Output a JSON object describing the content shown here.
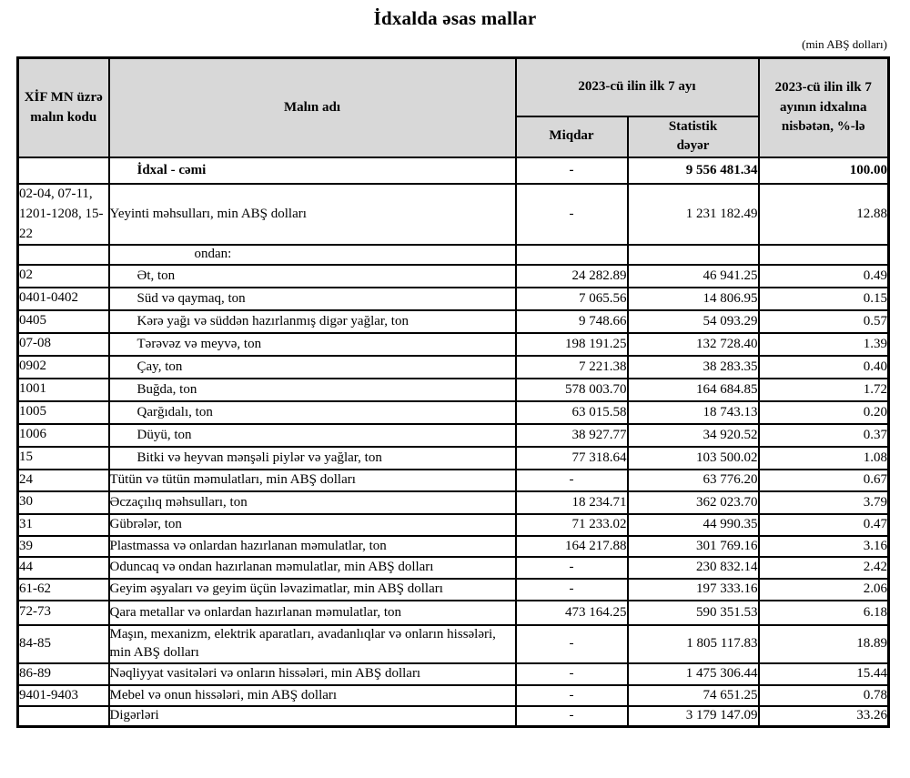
{
  "page": {
    "title": "İdxalda əsas mallar",
    "unit_note": "(min ABŞ dolları)"
  },
  "table": {
    "headers": {
      "code": "XİF MN üzrə malın kodu",
      "name": "Malın adı",
      "period_group": "2023-cü ilin ilk 7 ayı",
      "qty": "Miqdar",
      "value": "Statistik dəyər",
      "pct": "2023-cü ilin ilk 7 ayının idxalına nisbətən, %-lə"
    },
    "rows": [
      {
        "code": "",
        "name": "İdxal - cəmi",
        "qty": "-",
        "value": "9 556 481.34",
        "pct": "100.00",
        "bold": true,
        "indent": "sub",
        "h": 29
      },
      {
        "code": "02-04, 07-11, 1201-1208, 15-22",
        "name": "Yeyinti məhsulları, min ABŞ dolları",
        "qty": "-",
        "value": "1 231 182.49",
        "pct": "12.88",
        "bold": false,
        "indent": "none",
        "h": 66
      },
      {
        "code": "",
        "name": "ondan:",
        "qty": "",
        "value": "",
        "pct": "",
        "bold": false,
        "indent": "ondan",
        "h": 21
      },
      {
        "code": "02",
        "name": "Ət, ton",
        "qty": "24 282.89",
        "value": "46 941.25",
        "pct": "0.49",
        "bold": false,
        "indent": "sub",
        "h": 25
      },
      {
        "code": "0401-0402",
        "name": "Süd və qaymaq, ton",
        "qty": "7 065.56",
        "value": "14 806.95",
        "pct": "0.15",
        "bold": false,
        "indent": "sub",
        "h": 25
      },
      {
        "code": "0405",
        "name": "Kərə yağı və süddən hazırlanmış digər yağlar, ton",
        "qty": "9 748.66",
        "value": "54 093.29",
        "pct": "0.57",
        "bold": false,
        "indent": "sub",
        "h": 25
      },
      {
        "code": "07-08",
        "name": "Tərəvəz və meyvə, ton",
        "qty": "198 191.25",
        "value": "132 728.40",
        "pct": "1.39",
        "bold": false,
        "indent": "sub",
        "h": 25
      },
      {
        "code": "0902",
        "name": "Çay, ton",
        "qty": "7 221.38",
        "value": "38 283.35",
        "pct": "0.40",
        "bold": false,
        "indent": "sub",
        "h": 25
      },
      {
        "code": "1001",
        "name": "Buğda, ton",
        "qty": "578 003.70",
        "value": "164 684.85",
        "pct": "1.72",
        "bold": false,
        "indent": "sub",
        "h": 25
      },
      {
        "code": "1005",
        "name": "Qarğıdalı, ton",
        "qty": "63 015.58",
        "value": "18 743.13",
        "pct": "0.20",
        "bold": false,
        "indent": "sub",
        "h": 25
      },
      {
        "code": "1006",
        "name": "Düyü, ton",
        "qty": "38 927.77",
        "value": "34 920.52",
        "pct": "0.37",
        "bold": false,
        "indent": "sub",
        "h": 25
      },
      {
        "code": "15",
        "name": "Bitki və heyvan mənşəli piylər və yağlar, ton",
        "qty": "77 318.64",
        "value": "103 500.02",
        "pct": "1.08",
        "bold": false,
        "indent": "sub",
        "h": 25
      },
      {
        "code": "24",
        "name": "Tütün və tütün məmulatları, min ABŞ dolları",
        "qty": "-",
        "value": "63 776.20",
        "pct": "0.67",
        "bold": false,
        "indent": "none",
        "h": 24
      },
      {
        "code": "30",
        "name": "Əczaçılıq məhsulları, ton",
        "qty": "18 234.71",
        "value": "362 023.70",
        "pct": "3.79",
        "bold": false,
        "indent": "none",
        "h": 25
      },
      {
        "code": "31",
        "name": "Gübrələr, ton",
        "qty": "71 233.02",
        "value": "44 990.35",
        "pct": "0.47",
        "bold": false,
        "indent": "none",
        "h": 23
      },
      {
        "code": "39",
        "name": "Plastmassa və onlardan hazırlanan məmulatlar, ton",
        "qty": "164 217.88",
        "value": "301 769.16",
        "pct": "3.16",
        "bold": false,
        "indent": "none",
        "h": 21
      },
      {
        "code": "44",
        "name": "Oduncaq və ondan hazırlanan məmulatlar, min ABŞ dolları",
        "qty": "-",
        "value": "230 832.14",
        "pct": "2.42",
        "bold": false,
        "indent": "none",
        "h": 21
      },
      {
        "code": "61-62",
        "name": "Geyim əşyaları və geyim üçün ləvazimatlar, min ABŞ dolları",
        "qty": "-",
        "value": "197 333.16",
        "pct": "2.06",
        "bold": false,
        "indent": "none",
        "h": 21
      },
      {
        "code": "72-73",
        "name": "Qara metallar və onlardan hazırlanan məmulatlar, ton",
        "qty": "473 164.25",
        "value": "590 351.53",
        "pct": "6.18",
        "bold": false,
        "indent": "none",
        "h": 27
      },
      {
        "code": "84-85",
        "name": "Maşın, mexanizm, elektrik aparatları, avadanlıqlar və onların hissələri, min ABŞ dolları",
        "qty": "-",
        "value": "1 805 117.83",
        "pct": "18.89",
        "bold": false,
        "indent": "none",
        "h": 42
      },
      {
        "code": "86-89",
        "name": "Nəqliyyat vasitələri və onların hissələri, min ABŞ dolları",
        "qty": "-",
        "value": "1 475 306.44",
        "pct": "15.44",
        "bold": false,
        "indent": "none",
        "h": 22
      },
      {
        "code": "9401-9403",
        "name": "Mebel və onun hissələri, min ABŞ dolları",
        "qty": "-",
        "value": "74 651.25",
        "pct": "0.78",
        "bold": false,
        "indent": "none",
        "h": 23
      },
      {
        "code": "",
        "name": "Digərləri",
        "qty": "-",
        "value": "3 179 147.09",
        "pct": "33.26",
        "bold": false,
        "indent": "none",
        "h": 22
      }
    ]
  },
  "colors": {
    "header_bg": "#d8d8d8",
    "border": "#000000",
    "text": "#000000",
    "background": "#ffffff"
  }
}
